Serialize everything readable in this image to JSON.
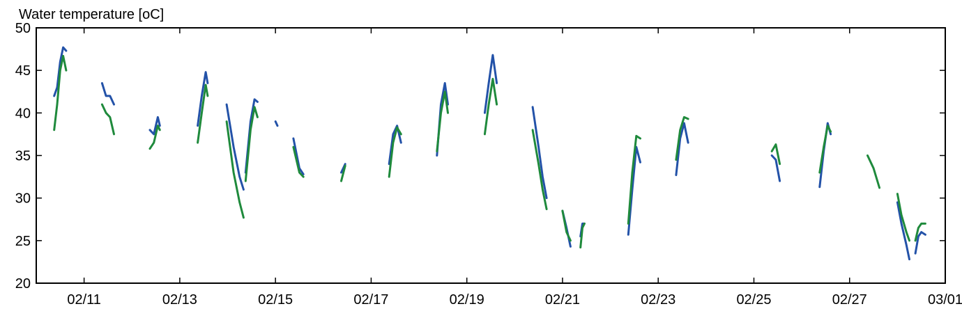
{
  "chart_data": {
    "type": "line",
    "ylabel": "Water temperature [oC]",
    "ylim": [
      20,
      50
    ],
    "yticks": [
      20,
      25,
      30,
      35,
      40,
      45,
      50
    ],
    "xlim": [
      "2021-02-10",
      "2021-03-01"
    ],
    "xticks": [
      {
        "date": "2021-02-11",
        "label": "02/11"
      },
      {
        "date": "2021-02-13",
        "label": "02/13"
      },
      {
        "date": "2021-02-15",
        "label": "02/15"
      },
      {
        "date": "2021-02-17",
        "label": "02/17"
      },
      {
        "date": "2021-02-19",
        "label": "02/19"
      },
      {
        "date": "2021-02-21",
        "label": "02/21"
      },
      {
        "date": "2021-02-23",
        "label": "02/23"
      },
      {
        "date": "2021-02-25",
        "label": "02/25"
      },
      {
        "date": "2021-02-27",
        "label": "02/27"
      },
      {
        "date": "2021-03-01",
        "label": "03/01"
      }
    ],
    "grid": false,
    "series": [
      {
        "color": "#2352a8",
        "segments": [
          [
            [
              "2021-02-10T09:00",
              42.0
            ],
            [
              "2021-02-10T10:30",
              43.0
            ],
            [
              "2021-02-10T12:00",
              46.0
            ],
            [
              "2021-02-10T13:30",
              47.7
            ],
            [
              "2021-02-10T15:00",
              47.3
            ]
          ],
          [
            [
              "2021-02-11T09:00",
              43.5
            ],
            [
              "2021-02-11T11:00",
              42.0
            ],
            [
              "2021-02-11T13:00",
              42.0
            ],
            [
              "2021-02-11T15:00",
              41.0
            ]
          ],
          [
            [
              "2021-02-12T09:00",
              38.0
            ],
            [
              "2021-02-12T11:00",
              37.5
            ],
            [
              "2021-02-12T13:00",
              39.5
            ],
            [
              "2021-02-12T14:00",
              38.5
            ]
          ],
          [
            [
              "2021-02-13T09:00",
              38.5
            ],
            [
              "2021-02-13T11:00",
              42.0
            ],
            [
              "2021-02-13T13:00",
              44.8
            ],
            [
              "2021-02-13T14:00",
              43.5
            ]
          ],
          [
            [
              "2021-02-13T23:30",
              41.0
            ],
            [
              "2021-02-14T03:00",
              36.0
            ],
            [
              "2021-02-14T06:00",
              32.5
            ],
            [
              "2021-02-14T08:00",
              31.0
            ]
          ],
          [
            [
              "2021-02-14T09:00",
              33.0
            ],
            [
              "2021-02-14T11:30",
              39.0
            ],
            [
              "2021-02-14T13:30",
              41.6
            ],
            [
              "2021-02-14T15:00",
              41.3
            ]
          ],
          [
            [
              "2021-02-15T00:00",
              39.0
            ],
            [
              "2021-02-15T01:00",
              38.5
            ]
          ],
          [
            [
              "2021-02-15T09:00",
              37.0
            ],
            [
              "2021-02-15T12:00",
              33.5
            ],
            [
              "2021-02-15T14:00",
              32.8
            ]
          ],
          [
            [
              "2021-02-16T09:00",
              33.0
            ],
            [
              "2021-02-16T11:00",
              34.0
            ]
          ],
          [
            [
              "2021-02-17T09:00",
              34.0
            ],
            [
              "2021-02-17T11:00",
              37.5
            ],
            [
              "2021-02-17T13:00",
              38.5
            ],
            [
              "2021-02-17T15:00",
              36.5
            ]
          ],
          [
            [
              "2021-02-18T09:00",
              35.0
            ],
            [
              "2021-02-18T11:00",
              41.0
            ],
            [
              "2021-02-18T13:00",
              43.5
            ],
            [
              "2021-02-18T14:30",
              41.0
            ]
          ],
          [
            [
              "2021-02-19T09:00",
              40.0
            ],
            [
              "2021-02-19T11:00",
              43.5
            ],
            [
              "2021-02-19T13:00",
              46.8
            ],
            [
              "2021-02-19T15:00",
              43.5
            ]
          ],
          [
            [
              "2021-02-20T09:00",
              40.7
            ],
            [
              "2021-02-20T12:00",
              36.0
            ],
            [
              "2021-02-20T14:00",
              32.5
            ],
            [
              "2021-02-20T16:00",
              30.0
            ]
          ],
          [
            [
              "2021-02-21T00:00",
              28.5
            ],
            [
              "2021-02-21T02:00",
              26.5
            ],
            [
              "2021-02-21T04:00",
              24.3
            ]
          ],
          [
            [
              "2021-02-21T09:00",
              25.5
            ],
            [
              "2021-02-21T10:00",
              27.0
            ],
            [
              "2021-02-21T11:00",
              27.0
            ]
          ],
          [
            [
              "2021-02-22T09:00",
              25.7
            ],
            [
              "2021-02-22T11:00",
              31.0
            ],
            [
              "2021-02-22T13:00",
              36.0
            ],
            [
              "2021-02-22T15:00",
              34.2
            ]
          ],
          [
            [
              "2021-02-23T09:00",
              32.7
            ],
            [
              "2021-02-23T11:00",
              37.0
            ],
            [
              "2021-02-23T13:00",
              38.8
            ],
            [
              "2021-02-23T15:00",
              36.5
            ]
          ],
          [
            [
              "2021-02-25T09:00",
              35.0
            ],
            [
              "2021-02-25T11:00",
              34.5
            ],
            [
              "2021-02-25T13:00",
              32.0
            ]
          ],
          [
            [
              "2021-02-26T09:00",
              31.3
            ],
            [
              "2021-02-26T11:00",
              35.5
            ],
            [
              "2021-02-26T13:00",
              38.8
            ],
            [
              "2021-02-26T14:30",
              37.5
            ]
          ],
          [
            [
              "2021-02-28T00:00",
              29.5
            ],
            [
              "2021-02-28T02:00",
              27.0
            ],
            [
              "2021-02-28T04:30",
              24.5
            ],
            [
              "2021-02-28T06:00",
              22.8
            ]
          ],
          [
            [
              "2021-02-28T09:00",
              23.5
            ],
            [
              "2021-02-28T10:30",
              25.5
            ],
            [
              "2021-02-28T12:00",
              26.0
            ],
            [
              "2021-02-28T14:00",
              25.7
            ]
          ]
        ]
      },
      {
        "color": "#1f8a3c",
        "segments": [
          [
            [
              "2021-02-10T09:00",
              38.0
            ],
            [
              "2021-02-10T10:30",
              41.0
            ],
            [
              "2021-02-10T12:00",
              45.0
            ],
            [
              "2021-02-10T13:30",
              46.7
            ],
            [
              "2021-02-10T15:00",
              45.0
            ]
          ],
          [
            [
              "2021-02-11T09:00",
              41.0
            ],
            [
              "2021-02-11T11:00",
              40.0
            ],
            [
              "2021-02-11T13:00",
              39.5
            ],
            [
              "2021-02-11T15:00",
              37.5
            ]
          ],
          [
            [
              "2021-02-12T09:00",
              35.8
            ],
            [
              "2021-02-12T11:00",
              36.5
            ],
            [
              "2021-02-12T13:00",
              38.5
            ],
            [
              "2021-02-12T14:00",
              38.0
            ]
          ],
          [
            [
              "2021-02-13T09:00",
              36.5
            ],
            [
              "2021-02-13T11:00",
              40.0
            ],
            [
              "2021-02-13T13:00",
              43.3
            ],
            [
              "2021-02-13T14:00",
              42.0
            ]
          ],
          [
            [
              "2021-02-13T23:30",
              39.0
            ],
            [
              "2021-02-14T03:00",
              33.0
            ],
            [
              "2021-02-14T06:00",
              29.5
            ],
            [
              "2021-02-14T08:00",
              27.7
            ]
          ],
          [
            [
              "2021-02-14T09:00",
              32.0
            ],
            [
              "2021-02-14T11:30",
              38.0
            ],
            [
              "2021-02-14T13:30",
              40.7
            ],
            [
              "2021-02-14T15:00",
              39.5
            ]
          ],
          [
            [
              "2021-02-15T09:00",
              36.0
            ],
            [
              "2021-02-15T12:00",
              33.0
            ],
            [
              "2021-02-15T14:00",
              32.5
            ]
          ],
          [
            [
              "2021-02-16T09:00",
              32.0
            ],
            [
              "2021-02-16T11:00",
              33.8
            ]
          ],
          [
            [
              "2021-02-17T09:00",
              32.5
            ],
            [
              "2021-02-17T11:00",
              36.5
            ],
            [
              "2021-02-17T13:00",
              38.3
            ],
            [
              "2021-02-17T15:00",
              37.5
            ]
          ],
          [
            [
              "2021-02-18T09:00",
              35.5
            ],
            [
              "2021-02-18T11:00",
              40.0
            ],
            [
              "2021-02-18T13:00",
              42.5
            ],
            [
              "2021-02-18T14:30",
              40.0
            ]
          ],
          [
            [
              "2021-02-19T09:00",
              37.5
            ],
            [
              "2021-02-19T11:00",
              41.0
            ],
            [
              "2021-02-19T13:00",
              44.0
            ],
            [
              "2021-02-19T15:00",
              41.0
            ]
          ],
          [
            [
              "2021-02-20T09:00",
              38.0
            ],
            [
              "2021-02-20T12:00",
              34.0
            ],
            [
              "2021-02-20T14:00",
              31.0
            ],
            [
              "2021-02-20T16:00",
              28.7
            ]
          ],
          [
            [
              "2021-02-21T00:00",
              28.5
            ],
            [
              "2021-02-21T02:00",
              26.0
            ],
            [
              "2021-02-21T04:00",
              25.0
            ]
          ],
          [
            [
              "2021-02-21T09:00",
              24.2
            ],
            [
              "2021-02-21T10:00",
              26.5
            ],
            [
              "2021-02-21T11:00",
              27.0
            ]
          ],
          [
            [
              "2021-02-22T09:00",
              27.0
            ],
            [
              "2021-02-22T11:00",
              33.0
            ],
            [
              "2021-02-22T13:00",
              37.3
            ],
            [
              "2021-02-22T15:00",
              37.0
            ]
          ],
          [
            [
              "2021-02-23T09:00",
              34.5
            ],
            [
              "2021-02-23T11:00",
              38.0
            ],
            [
              "2021-02-23T13:00",
              39.5
            ],
            [
              "2021-02-23T15:00",
              39.3
            ]
          ],
          [
            [
              "2021-02-25T09:00",
              35.5
            ],
            [
              "2021-02-25T11:00",
              36.3
            ],
            [
              "2021-02-25T13:00",
              34.0
            ]
          ],
          [
            [
              "2021-02-26T09:00",
              33.0
            ],
            [
              "2021-02-26T11:00",
              36.0
            ],
            [
              "2021-02-26T13:00",
              38.5
            ],
            [
              "2021-02-26T14:30",
              37.8
            ]
          ],
          [
            [
              "2021-02-27T09:00",
              35.0
            ],
            [
              "2021-02-27T12:00",
              33.5
            ],
            [
              "2021-02-27T15:00",
              31.2
            ]
          ],
          [
            [
              "2021-02-28T00:00",
              30.5
            ],
            [
              "2021-02-28T02:00",
              28.0
            ],
            [
              "2021-02-28T04:30",
              26.0
            ],
            [
              "2021-02-28T06:00",
              25.0
            ]
          ],
          [
            [
              "2021-02-28T09:00",
              25.0
            ],
            [
              "2021-02-28T10:30",
              26.5
            ],
            [
              "2021-02-28T12:00",
              27.0
            ],
            [
              "2021-02-28T14:00",
              27.0
            ]
          ]
        ]
      }
    ]
  }
}
